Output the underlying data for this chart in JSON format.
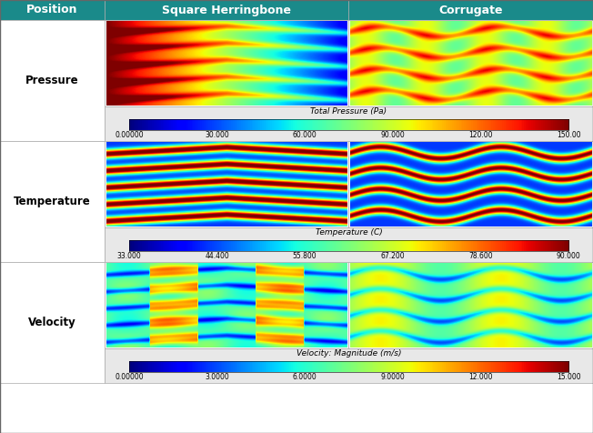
{
  "header_bg": "#1a8a8a",
  "header_text_color": "#ffffff",
  "header_font_size": 9,
  "header_font_weight": "bold",
  "row_label_font_size": 8.5,
  "row_label_font_weight": "bold",
  "col_headers": [
    "Position",
    "Square Herringbone",
    "Corrugate"
  ],
  "row_labels": [
    "Pressure",
    "Temperature",
    "Velocity"
  ],
  "colorbar_labels": [
    {
      "title": "Total Pressure (Pa)",
      "ticks": [
        "0.00000",
        "30.000",
        "60.000",
        "90.000",
        "120.00",
        "150.00"
      ]
    },
    {
      "title": "Temperature (C)",
      "ticks": [
        "33.000",
        "44.400",
        "55.800",
        "67.200",
        "78.600",
        "90.000"
      ]
    },
    {
      "title": "Velocity: Magnitude (m/s)",
      "ticks": [
        "0.00000",
        "3.0000",
        "6.0000",
        "9.0000",
        "12.000",
        "15.000"
      ]
    }
  ],
  "table_bg": "#ffffff",
  "cell_border_color": "#aaaaaa",
  "colorbar_bg": "#e8e8e8",
  "colorbar_font_size": 6.5
}
